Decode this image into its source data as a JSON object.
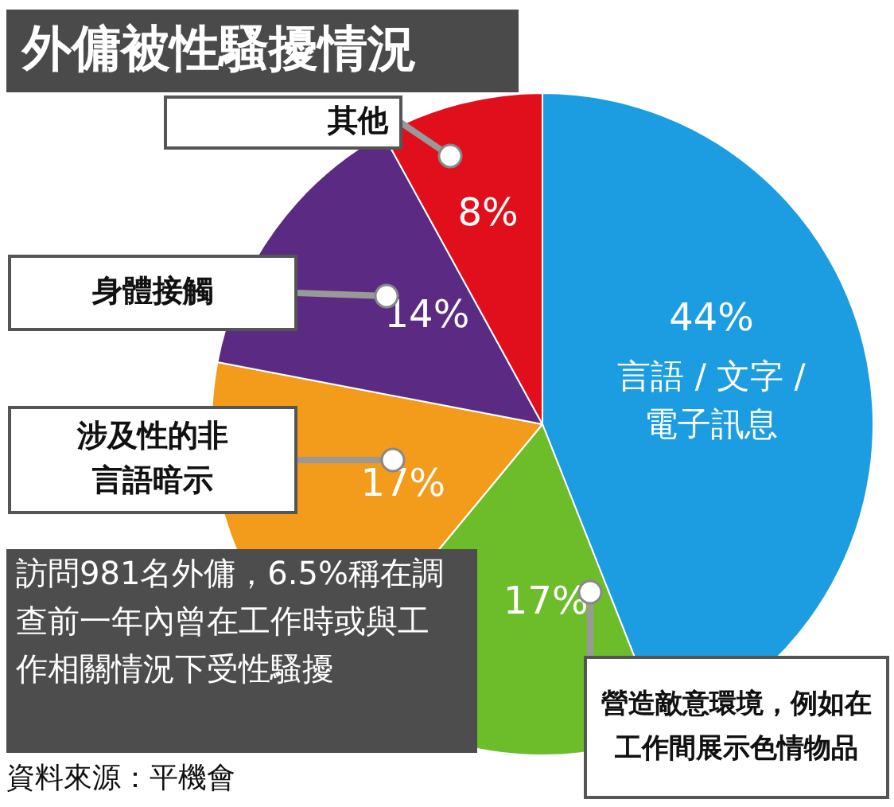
{
  "chart_data": {
    "type": "pie",
    "title": "外傭被性騷擾情況",
    "categories": [
      "言語 / 文字 / 電子訊息",
      "營造敵意環境，例如在工作間展示色情物品",
      "涉及性的非言語暗示",
      "身體接觸",
      "其他"
    ],
    "values": [
      44,
      17,
      17,
      14,
      8
    ],
    "colors": [
      "#1c9de2",
      "#6dbd2b",
      "#f39b1b",
      "#5b2b83",
      "#e10f1c"
    ],
    "value_labels": [
      "44%",
      "17%",
      "17%",
      "14%",
      "8%"
    ],
    "legend": false,
    "annotations": [
      "訪問981名外傭，6.5%稱在調查前一年內曾在工作時或與工作相關情況下受性騷擾",
      "資料來源：平機會"
    ]
  }
}
